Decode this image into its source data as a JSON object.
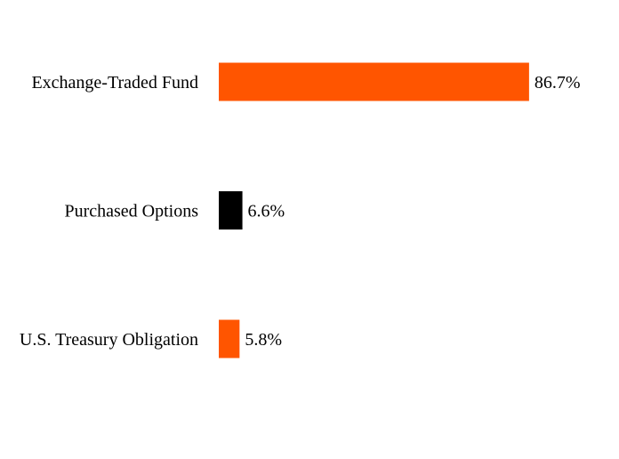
{
  "chart_data": {
    "type": "bar",
    "orientation": "horizontal",
    "title": "",
    "xlabel": "",
    "ylabel": "",
    "categories": [
      "Exchange-Traded Fund",
      "Purchased Options",
      "U.S. Treasury Obligation"
    ],
    "values": [
      86.7,
      6.6,
      5.8
    ],
    "value_labels": [
      "86.7%",
      "6.6%",
      "5.8%"
    ],
    "colors": [
      "#ff5500",
      "#000000",
      "#ff5500"
    ],
    "xlim": [
      0,
      100
    ],
    "grid": false,
    "legend": "none"
  }
}
